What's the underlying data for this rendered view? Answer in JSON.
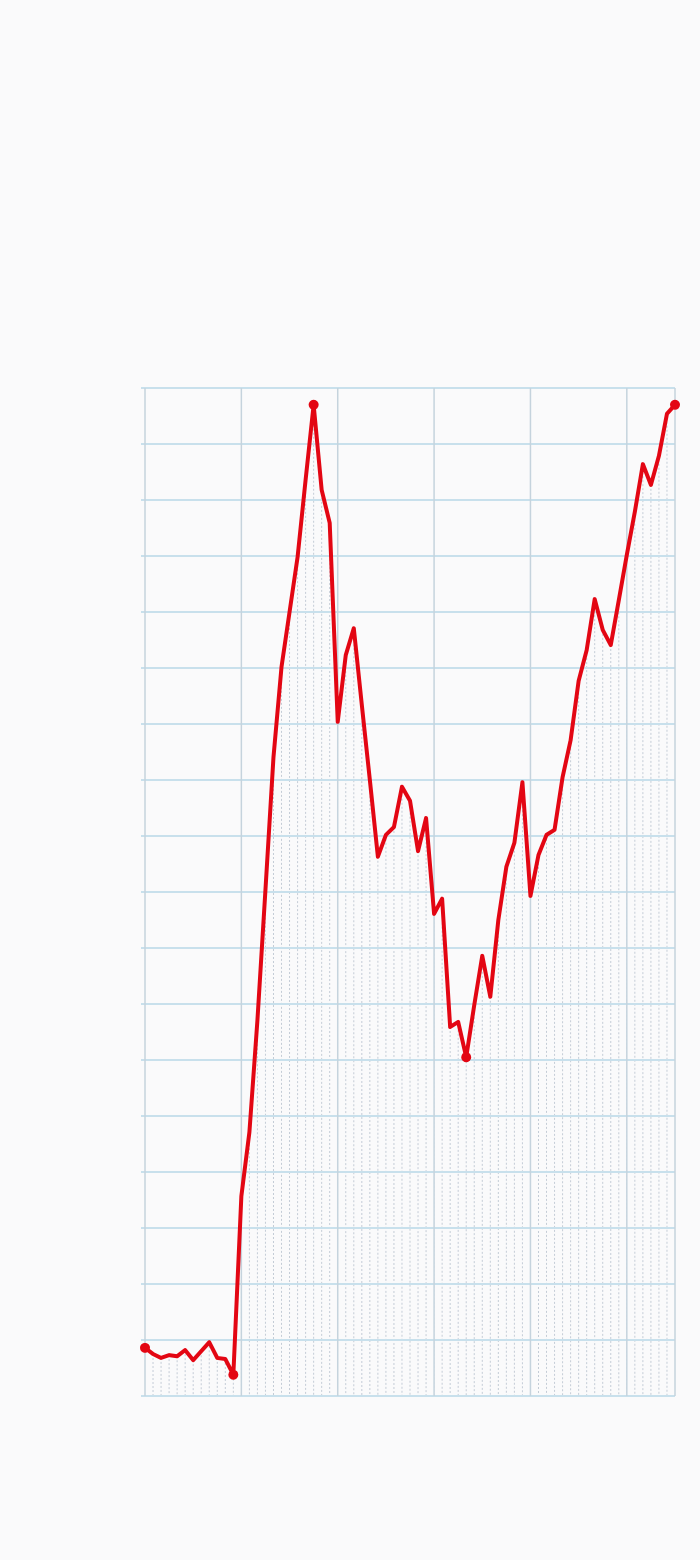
{
  "chart_data": {
    "type": "line",
    "x": [
      0,
      1,
      2,
      3,
      4,
      5,
      6,
      7,
      8,
      9,
      10,
      11,
      12,
      13,
      14,
      15,
      16,
      17,
      18,
      19,
      20,
      21,
      22,
      23,
      24,
      25,
      26,
      27,
      28,
      29,
      30,
      31,
      32,
      33,
      34,
      35,
      36,
      37,
      38,
      39,
      40,
      41,
      42,
      43,
      44,
      45,
      46,
      47,
      48,
      49,
      50,
      51,
      52,
      53,
      54,
      55,
      56,
      57,
      58,
      59,
      60,
      61,
      62,
      63,
      64,
      65,
      66
    ],
    "series": [
      {
        "color": "#e30613",
        "values": [
          0.86,
          0.75,
          0.68,
          0.73,
          0.71,
          0.82,
          0.64,
          0.8,
          0.96,
          0.68,
          0.66,
          0.38,
          3.57,
          4.71,
          6.71,
          9.04,
          11.41,
          13.02,
          14.0,
          14.98,
          16.36,
          17.7,
          16.18,
          15.59,
          12.04,
          13.23,
          13.71,
          12.34,
          11.0,
          9.63,
          10.02,
          10.16,
          10.88,
          10.63,
          9.73,
          10.32,
          8.61,
          8.88,
          6.59,
          6.68,
          6.05,
          6.98,
          7.86,
          7.13,
          8.5,
          9.45,
          9.88,
          10.96,
          8.93,
          9.66,
          10.02,
          10.11,
          11.05,
          11.71,
          12.77,
          13.32,
          14.23,
          13.68,
          13.41,
          14.21,
          15.02,
          15.79,
          16.64,
          16.27,
          16.79,
          17.54,
          17.7
        ],
        "marker_indices": [
          0,
          11,
          21,
          40,
          66
        ]
      }
    ],
    "xlim": [
      0,
      66
    ],
    "xticks": [
      0,
      12,
      24,
      36,
      48,
      60,
      66
    ],
    "ylim": [
      0,
      18
    ],
    "yticks": [
      0,
      1,
      2,
      3,
      4,
      5,
      6,
      7,
      8,
      9,
      10,
      11,
      12,
      13,
      14,
      15,
      16,
      17,
      18
    ],
    "grid": true,
    "drop_lines": true
  }
}
